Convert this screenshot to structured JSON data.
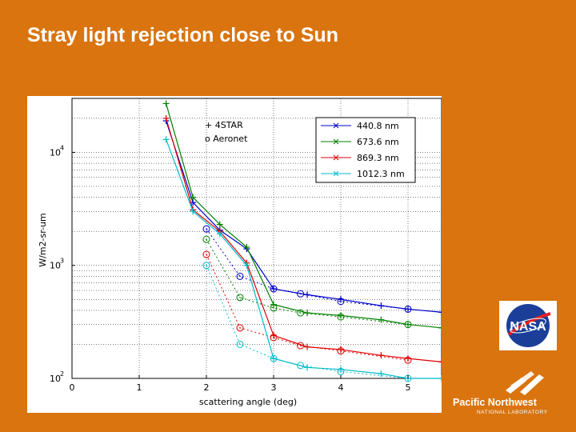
{
  "slide": {
    "title": "Stray light rejection close to Sun"
  },
  "logos": {
    "nasa": {
      "text": "NASA",
      "color": "#1B3F99"
    },
    "pnnl": {
      "name": "Pacific Northwest",
      "sub": "NATIONAL LABORATORY"
    }
  },
  "chart_data": {
    "type": "line",
    "xlabel": "scattering angle (deg)",
    "ylabel": "W/m2-sr-um",
    "xlim": [
      0,
      5.5
    ],
    "ylim": [
      100,
      30000
    ],
    "y_scale": "log",
    "x_ticks": [
      "0",
      "1",
      "2",
      "3",
      "4",
      "5"
    ],
    "y_ticks": [
      {
        "base": "10",
        "exp": "2",
        "value": 100
      },
      {
        "base": "10",
        "exp": "3",
        "value": 1000
      },
      {
        "base": "10",
        "exp": "4",
        "value": 10000
      }
    ],
    "grid": true,
    "annotation": [
      "+ 4STAR",
      "o Aeronet"
    ],
    "legend_placement": "top-right",
    "series": [
      {
        "name": "440.8 nm",
        "color": "#0000CC",
        "fourstar": [
          [
            1.4,
            19000
          ],
          [
            1.8,
            3600
          ],
          [
            2.2,
            2050
          ],
          [
            2.6,
            1400
          ],
          [
            3.0,
            620
          ],
          [
            3.5,
            550
          ],
          [
            4.0,
            500
          ],
          [
            4.6,
            440
          ],
          [
            5.0,
            410
          ],
          [
            5.5,
            385
          ]
        ],
        "aeronet": [
          [
            2.0,
            2100
          ],
          [
            2.5,
            800
          ],
          [
            3.0,
            620
          ],
          [
            3.4,
            560
          ],
          [
            4.0,
            480
          ],
          [
            5.0,
            410
          ]
        ]
      },
      {
        "name": "673.6 nm",
        "color": "#008000",
        "fourstar": [
          [
            1.4,
            27000
          ],
          [
            1.8,
            4000
          ],
          [
            2.2,
            2300
          ],
          [
            2.6,
            1450
          ],
          [
            3.0,
            450
          ],
          [
            3.5,
            380
          ],
          [
            4.0,
            360
          ],
          [
            4.6,
            330
          ],
          [
            5.0,
            300
          ],
          [
            5.5,
            280
          ]
        ],
        "aeronet": [
          [
            2.0,
            1700
          ],
          [
            2.5,
            520
          ],
          [
            3.0,
            420
          ],
          [
            3.4,
            380
          ],
          [
            4.0,
            350
          ],
          [
            5.0,
            300
          ]
        ]
      },
      {
        "name": "869.3 nm",
        "color": "#DD0000",
        "fourstar": [
          [
            1.4,
            20000
          ],
          [
            1.8,
            3100
          ],
          [
            2.2,
            2000
          ],
          [
            2.6,
            1050
          ],
          [
            3.0,
            240
          ],
          [
            3.5,
            190
          ],
          [
            4.0,
            180
          ],
          [
            4.6,
            160
          ],
          [
            5.0,
            150
          ],
          [
            5.5,
            140
          ]
        ],
        "aeronet": [
          [
            2.0,
            1250
          ],
          [
            2.5,
            280
          ],
          [
            3.0,
            230
          ],
          [
            3.4,
            195
          ],
          [
            4.0,
            175
          ],
          [
            5.0,
            145
          ]
        ]
      },
      {
        "name": "1012.3 nm",
        "color": "#00BBCC",
        "fourstar": [
          [
            1.4,
            13000
          ],
          [
            1.8,
            3000
          ],
          [
            2.2,
            1900
          ],
          [
            2.6,
            1000
          ],
          [
            3.0,
            150
          ],
          [
            3.5,
            125
          ],
          [
            4.0,
            120
          ],
          [
            4.6,
            110
          ],
          [
            5.0,
            100
          ],
          [
            5.5,
            100
          ]
        ],
        "aeronet": [
          [
            2.0,
            1000
          ],
          [
            2.5,
            200
          ],
          [
            3.0,
            150
          ],
          [
            3.4,
            130
          ],
          [
            4.0,
            115
          ],
          [
            5.0,
            100
          ]
        ]
      }
    ]
  }
}
